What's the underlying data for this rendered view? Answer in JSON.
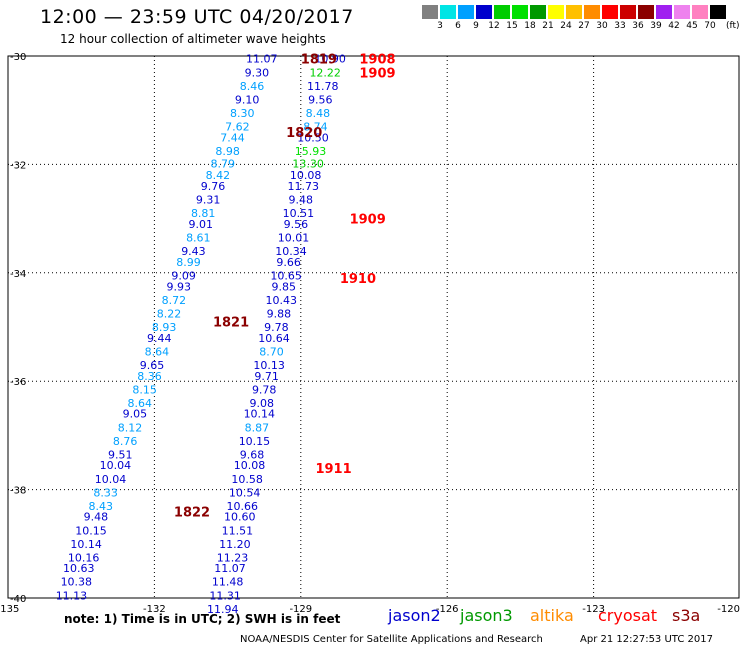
{
  "header": {
    "title": "12:00 — 23:59 UTC 04/20/2017",
    "subtitle": "12 hour collection of altimeter wave heights"
  },
  "footer": {
    "note": "note: 1) Time is in UTC; 2) SWH is in feet",
    "credit": "NOAA/NESDIS Center for Satellite Applications and Research",
    "timestamp": "Apr 21 12:27:53 UTC 2017"
  },
  "colorbar": {
    "colors": [
      "#808080",
      "#00e5e5",
      "#00a0ff",
      "#0000cd",
      "#00cd00",
      "#00e000",
      "#009900",
      "#ffff00",
      "#ffc000",
      "#ff8c00",
      "#ff0000",
      "#cd0000",
      "#8b0000",
      "#a020f0",
      "#ee82ee",
      "#ff80c0",
      "#000000"
    ],
    "labels": [
      "3",
      "6",
      "9",
      "12",
      "15",
      "18",
      "21",
      "24",
      "27",
      "30",
      "33",
      "36",
      "39",
      "42",
      "45",
      "70"
    ],
    "unit": "(ft)"
  },
  "legend": [
    {
      "name": "jason2",
      "color": "#0000cd"
    },
    {
      "name": "jason3",
      "color": "#009900"
    },
    {
      "name": "altika",
      "color": "#ff8c00"
    },
    {
      "name": "cryosat",
      "color": "#ff0000"
    },
    {
      "name": "s3a",
      "color": "#8b0000"
    }
  ],
  "chart_data": {
    "type": "scatter",
    "title": "12:00 — 23:59 UTC 04/20/2017",
    "subtitle": "12 hour collection of altimeter wave heights",
    "xlim": [
      -135,
      -120
    ],
    "ylim": [
      -40,
      -30
    ],
    "xticks": [
      -135,
      -132,
      -129,
      -126,
      -123,
      -120
    ],
    "xtick_labels": [
      "-135",
      "-132",
      "-129",
      "-126",
      "-123",
      "-120"
    ],
    "yticks": [
      -30,
      -32,
      -34,
      -36,
      -38,
      -40
    ],
    "ytick_labels": [
      "-30",
      "-32",
      "-34",
      "-36",
      "-38",
      "-40"
    ],
    "grid": true,
    "series": [
      {
        "name": "s3a",
        "color": "#8b0000",
        "points": [
          {
            "lon": -129.8,
            "lat": -30.05,
            "swh": 11.07
          },
          {
            "lon": -129.9,
            "lat": -30.3,
            "swh": 9.3
          },
          {
            "lon": -130.0,
            "lat": -30.55,
            "swh": 8.46
          },
          {
            "lon": -130.1,
            "lat": -30.8,
            "swh": 9.1
          },
          {
            "lon": -130.2,
            "lat": -31.05,
            "swh": 8.3
          },
          {
            "lon": -130.3,
            "lat": -31.3,
            "swh": 7.62
          },
          {
            "lon": -130.4,
            "lat": -31.5,
            "swh": 7.44
          },
          {
            "lon": -130.5,
            "lat": -31.75,
            "swh": 8.98
          },
          {
            "lon": -130.6,
            "lat": -31.98,
            "swh": 8.79
          },
          {
            "lon": -130.7,
            "lat": -32.2,
            "swh": 8.42
          },
          {
            "lon": -130.8,
            "lat": -32.4,
            "swh": 9.76
          },
          {
            "lon": -130.9,
            "lat": -32.65,
            "swh": 9.31
          },
          {
            "lon": -131.0,
            "lat": -32.9,
            "swh": 8.81
          },
          {
            "lon": -131.05,
            "lat": -33.1,
            "swh": 9.01
          },
          {
            "lon": -131.1,
            "lat": -33.35,
            "swh": 8.61
          },
          {
            "lon": -131.2,
            "lat": -33.6,
            "swh": 9.43
          },
          {
            "lon": -131.3,
            "lat": -33.8,
            "swh": 8.99
          },
          {
            "lon": -131.4,
            "lat": -34.05,
            "swh": 9.09
          },
          {
            "lon": -131.5,
            "lat": -34.25,
            "swh": 9.93
          },
          {
            "lon": -131.6,
            "lat": -34.5,
            "swh": 8.72
          },
          {
            "lon": -131.7,
            "lat": -34.75,
            "swh": 8.22
          },
          {
            "lon": -131.8,
            "lat": -35.0,
            "swh": 8.93
          },
          {
            "lon": -131.9,
            "lat": -35.2,
            "swh": 9.44
          },
          {
            "lon": -131.95,
            "lat": -35.45,
            "swh": 8.64
          },
          {
            "lon": -132.05,
            "lat": -35.7,
            "swh": 9.65
          },
          {
            "lon": -132.1,
            "lat": -35.9,
            "swh": 8.36
          },
          {
            "lon": -132.2,
            "lat": -36.15,
            "swh": 8.15
          },
          {
            "lon": -132.3,
            "lat": -36.4,
            "swh": 8.64
          },
          {
            "lon": -132.4,
            "lat": -36.6,
            "swh": 9.05
          },
          {
            "lon": -132.5,
            "lat": -36.85,
            "swh": 8.12
          },
          {
            "lon": -132.6,
            "lat": -37.1,
            "swh": 8.76
          },
          {
            "lon": -132.7,
            "lat": -37.35,
            "swh": 9.51
          },
          {
            "lon": -132.8,
            "lat": -37.55,
            "swh": 10.04
          },
          {
            "lon": -132.9,
            "lat": -37.8,
            "swh": 10.04
          },
          {
            "lon": -133.0,
            "lat": -38.05,
            "swh": 8.33
          },
          {
            "lon": -133.1,
            "lat": -38.3,
            "swh": 8.43
          },
          {
            "lon": -133.2,
            "lat": -38.5,
            "swh": 9.48
          },
          {
            "lon": -133.3,
            "lat": -38.75,
            "swh": 10.15
          },
          {
            "lon": -133.4,
            "lat": -39.0,
            "swh": 10.14
          },
          {
            "lon": -133.45,
            "lat": -39.25,
            "swh": 10.16
          },
          {
            "lon": -133.55,
            "lat": -39.45,
            "swh": 10.63
          },
          {
            "lon": -133.6,
            "lat": -39.7,
            "swh": 10.38
          },
          {
            "lon": -133.7,
            "lat": -39.95,
            "swh": 11.13
          }
        ]
      },
      {
        "name": "cryosat",
        "color": "#ff0000",
        "points": [
          {
            "lon": -128.4,
            "lat": -30.05,
            "swh": 10.9
          },
          {
            "lon": -128.5,
            "lat": -30.3,
            "swh": 12.22
          },
          {
            "lon": -128.55,
            "lat": -30.55,
            "swh": 11.78
          },
          {
            "lon": -128.6,
            "lat": -30.8,
            "swh": 9.56
          },
          {
            "lon": -128.65,
            "lat": -31.05,
            "swh": 8.48
          },
          {
            "lon": -128.7,
            "lat": -31.3,
            "swh": 8.74
          },
          {
            "lon": -128.75,
            "lat": -31.5,
            "swh": 10.5
          },
          {
            "lon": -128.8,
            "lat": -31.75,
            "swh": 15.93
          },
          {
            "lon": -128.85,
            "lat": -31.98,
            "swh": 13.3
          },
          {
            "lon": -128.9,
            "lat": -32.2,
            "swh": 10.08
          },
          {
            "lon": -128.95,
            "lat": -32.4,
            "swh": 11.73
          },
          {
            "lon": -129.0,
            "lat": -32.65,
            "swh": 9.48
          },
          {
            "lon": -129.05,
            "lat": -32.9,
            "swh": 10.51
          },
          {
            "lon": -129.1,
            "lat": -33.1,
            "swh": 9.56
          },
          {
            "lon": -129.15,
            "lat": -33.35,
            "swh": 10.01
          },
          {
            "lon": -129.2,
            "lat": -33.6,
            "swh": 10.34
          },
          {
            "lon": -129.25,
            "lat": -33.8,
            "swh": 9.66
          },
          {
            "lon": -129.3,
            "lat": -34.05,
            "swh": 10.65
          },
          {
            "lon": -129.35,
            "lat": -34.25,
            "swh": 9.85
          },
          {
            "lon": -129.4,
            "lat": -34.5,
            "swh": 10.43
          },
          {
            "lon": -129.45,
            "lat": -34.75,
            "swh": 9.88
          },
          {
            "lon": -129.5,
            "lat": -35.0,
            "swh": 9.78
          },
          {
            "lon": -129.55,
            "lat": -35.2,
            "swh": 10.64
          },
          {
            "lon": -129.6,
            "lat": -35.45,
            "swh": 8.7
          },
          {
            "lon": -129.65,
            "lat": -35.7,
            "swh": 10.13
          },
          {
            "lon": -129.7,
            "lat": -35.9,
            "swh": 9.71
          },
          {
            "lon": -129.75,
            "lat": -36.15,
            "swh": 9.78
          },
          {
            "lon": -129.8,
            "lat": -36.4,
            "swh": 9.08
          },
          {
            "lon": -129.85,
            "lat": -36.6,
            "swh": 10.14
          },
          {
            "lon": -129.9,
            "lat": -36.85,
            "swh": 8.87
          },
          {
            "lon": -129.95,
            "lat": -37.1,
            "swh": 10.15
          },
          {
            "lon": -130.0,
            "lat": -37.35,
            "swh": 9.68
          },
          {
            "lon": -130.05,
            "lat": -37.55,
            "swh": 10.08
          },
          {
            "lon": -130.1,
            "lat": -37.8,
            "swh": 10.58
          },
          {
            "lon": -130.15,
            "lat": -38.05,
            "swh": 10.54
          },
          {
            "lon": -130.2,
            "lat": -38.3,
            "swh": 10.66
          },
          {
            "lon": -130.25,
            "lat": -38.5,
            "swh": 10.6
          },
          {
            "lon": -130.3,
            "lat": -38.75,
            "swh": 11.51
          },
          {
            "lon": -130.35,
            "lat": -39.0,
            "swh": 11.2
          },
          {
            "lon": -130.4,
            "lat": -39.25,
            "swh": 11.23
          },
          {
            "lon": -130.45,
            "lat": -39.45,
            "swh": 11.07
          },
          {
            "lon": -130.5,
            "lat": -39.7,
            "swh": 11.48
          },
          {
            "lon": -130.55,
            "lat": -39.95,
            "swh": 11.31
          },
          {
            "lon": -130.6,
            "lat": -40.2,
            "swh": 11.94
          }
        ]
      }
    ],
    "time_labels": [
      {
        "text": "1819",
        "lon": -129.0,
        "lat": -30.05,
        "color": "#8b0000"
      },
      {
        "text": "1820",
        "lon": -129.3,
        "lat": -31.4,
        "color": "#8b0000"
      },
      {
        "text": "1821",
        "lon": -130.8,
        "lat": -34.9,
        "color": "#8b0000"
      },
      {
        "text": "1822",
        "lon": -131.6,
        "lat": -38.4,
        "color": "#8b0000"
      },
      {
        "text": "1908",
        "lon": -127.8,
        "lat": -30.05,
        "color": "#ff0000"
      },
      {
        "text": "1909",
        "lon": -127.8,
        "lat": -30.3,
        "color": "#ff0000"
      },
      {
        "text": "1909",
        "lon": -128.0,
        "lat": -33.0,
        "color": "#ff0000"
      },
      {
        "text": "1910",
        "lon": -128.2,
        "lat": -34.1,
        "color": "#ff0000"
      },
      {
        "text": "1911",
        "lon": -128.7,
        "lat": -37.6,
        "color": "#ff0000"
      }
    ]
  }
}
